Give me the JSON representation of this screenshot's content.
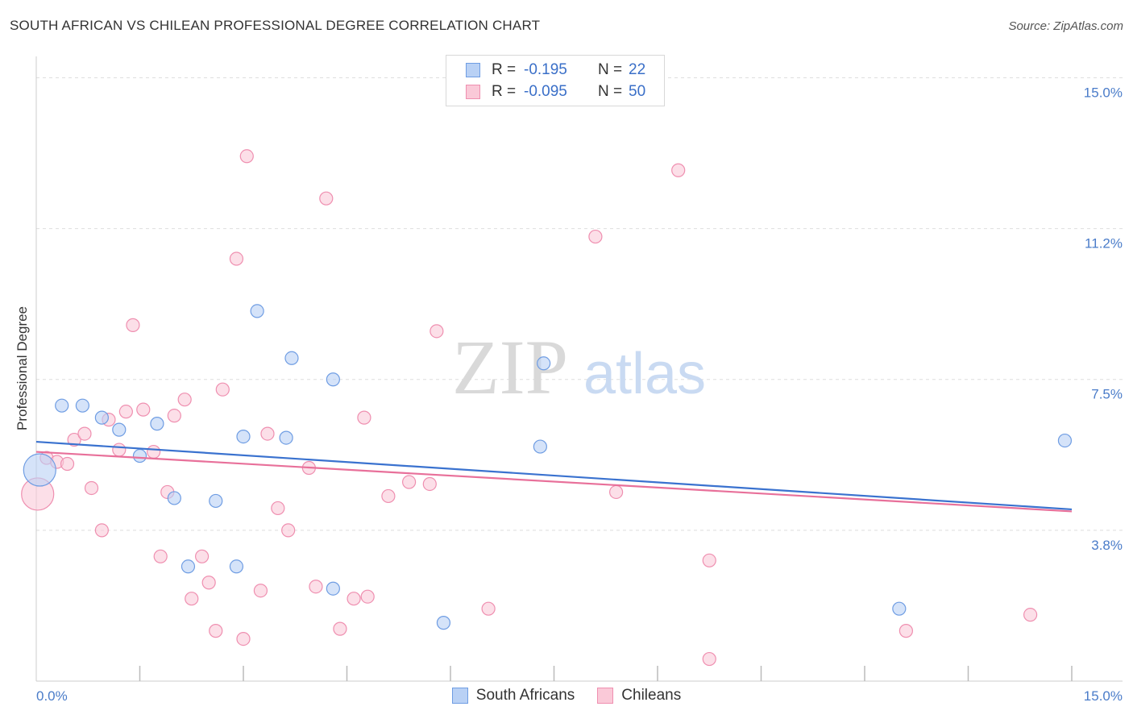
{
  "header": {
    "title": "SOUTH AFRICAN VS CHILEAN PROFESSIONAL DEGREE CORRELATION CHART",
    "source": "Source: ZipAtlas.com"
  },
  "legend": {
    "rows": [
      {
        "r_label": "R =",
        "r_value": "-0.195",
        "n_label": "N =",
        "n_value": "22",
        "color": "#6f9de3",
        "fill": "#b9d1f5"
      },
      {
        "r_label": "R =",
        "r_value": "-0.095",
        "n_label": "N =",
        "n_value": "50",
        "color": "#ef8fb0",
        "fill": "#fac9d8"
      }
    ]
  },
  "bottom_legend": {
    "items": [
      {
        "label": "South Africans",
        "color": "#6f9de3",
        "fill": "#b9d1f5"
      },
      {
        "label": "Chileans",
        "color": "#ef8fb0",
        "fill": "#fac9d8"
      }
    ]
  },
  "watermark": {
    "zip": "ZIP",
    "atlas": "atlas"
  },
  "chart_data": {
    "type": "scatter",
    "ylabel": "Professional Degree",
    "x_tick_labels": {
      "left": "0.0%",
      "right": "15.0%"
    },
    "y_ticks": [
      {
        "value": 15.0,
        "label": "15.0%"
      },
      {
        "value": 11.25,
        "label": "11.2%"
      },
      {
        "value": 7.5,
        "label": "7.5%"
      },
      {
        "value": 3.75,
        "label": "3.8%"
      }
    ],
    "xlim": [
      0,
      15
    ],
    "ylim": [
      0,
      15.35
    ],
    "grid": true,
    "series": [
      {
        "name": "South Africans",
        "stroke": "#6f9de3",
        "fill": "#b9d1f5",
        "line_color": "#3a72cf",
        "trend": {
          "x0": 0.0,
          "y0": 5.95,
          "x1": 15.0,
          "y1": 4.27
        },
        "points": [
          {
            "x": 0.05,
            "y": 5.25,
            "big": true
          },
          {
            "x": 0.37,
            "y": 6.85
          },
          {
            "x": 0.67,
            "y": 6.85
          },
          {
            "x": 0.95,
            "y": 6.55
          },
          {
            "x": 1.2,
            "y": 6.25
          },
          {
            "x": 1.5,
            "y": 5.6
          },
          {
            "x": 1.75,
            "y": 6.4
          },
          {
            "x": 2.0,
            "y": 4.55
          },
          {
            "x": 2.6,
            "y": 4.48
          },
          {
            "x": 2.2,
            "y": 2.85
          },
          {
            "x": 2.9,
            "y": 2.85
          },
          {
            "x": 3.0,
            "y": 6.08
          },
          {
            "x": 3.2,
            "y": 9.2
          },
          {
            "x": 3.62,
            "y": 6.05
          },
          {
            "x": 3.7,
            "y": 8.03
          },
          {
            "x": 4.3,
            "y": 7.5
          },
          {
            "x": 4.3,
            "y": 2.3
          },
          {
            "x": 5.9,
            "y": 1.45
          },
          {
            "x": 7.35,
            "y": 7.9
          },
          {
            "x": 7.3,
            "y": 5.83
          },
          {
            "x": 12.5,
            "y": 1.8
          },
          {
            "x": 14.9,
            "y": 5.98
          }
        ]
      },
      {
        "name": "Chileans",
        "stroke": "#ef8fb0",
        "fill": "#fac9d8",
        "line_color": "#e8709a",
        "trend": {
          "x0": 0.0,
          "y0": 5.7,
          "x1": 15.0,
          "y1": 4.22
        },
        "points": [
          {
            "x": 0.02,
            "y": 4.65,
            "big": true
          },
          {
            "x": 0.15,
            "y": 5.55
          },
          {
            "x": 0.3,
            "y": 5.45
          },
          {
            "x": 0.45,
            "y": 5.4
          },
          {
            "x": 0.55,
            "y": 6.0
          },
          {
            "x": 0.7,
            "y": 6.15
          },
          {
            "x": 0.8,
            "y": 4.8
          },
          {
            "x": 0.95,
            "y": 3.75
          },
          {
            "x": 1.05,
            "y": 6.5
          },
          {
            "x": 1.2,
            "y": 5.75
          },
          {
            "x": 1.3,
            "y": 6.7
          },
          {
            "x": 1.4,
            "y": 8.85
          },
          {
            "x": 1.55,
            "y": 6.75
          },
          {
            "x": 1.7,
            "y": 5.7
          },
          {
            "x": 1.8,
            "y": 3.1
          },
          {
            "x": 1.9,
            "y": 4.7
          },
          {
            "x": 2.0,
            "y": 6.6
          },
          {
            "x": 2.15,
            "y": 7.0
          },
          {
            "x": 2.25,
            "y": 2.05
          },
          {
            "x": 2.4,
            "y": 3.1
          },
          {
            "x": 2.5,
            "y": 2.45
          },
          {
            "x": 2.6,
            "y": 1.25
          },
          {
            "x": 2.7,
            "y": 7.25
          },
          {
            "x": 2.9,
            "y": 10.5
          },
          {
            "x": 3.0,
            "y": 1.05
          },
          {
            "x": 3.05,
            "y": 13.05
          },
          {
            "x": 3.25,
            "y": 2.25
          },
          {
            "x": 3.35,
            "y": 6.15
          },
          {
            "x": 3.5,
            "y": 4.3
          },
          {
            "x": 3.65,
            "y": 3.75
          },
          {
            "x": 3.95,
            "y": 5.3
          },
          {
            "x": 4.05,
            "y": 2.35
          },
          {
            "x": 4.2,
            "y": 12.0
          },
          {
            "x": 4.4,
            "y": 1.3
          },
          {
            "x": 4.6,
            "y": 2.05
          },
          {
            "x": 4.75,
            "y": 6.55
          },
          {
            "x": 4.8,
            "y": 2.1
          },
          {
            "x": 5.1,
            "y": 4.6
          },
          {
            "x": 5.4,
            "y": 4.95
          },
          {
            "x": 5.7,
            "y": 4.9
          },
          {
            "x": 5.8,
            "y": 8.7
          },
          {
            "x": 6.55,
            "y": 1.8
          },
          {
            "x": 8.1,
            "y": 11.05
          },
          {
            "x": 8.4,
            "y": 4.7
          },
          {
            "x": 9.3,
            "y": 12.7
          },
          {
            "x": 9.75,
            "y": 3.0
          },
          {
            "x": 9.75,
            "y": 0.55
          },
          {
            "x": 12.6,
            "y": 1.25
          },
          {
            "x": 14.4,
            "y": 1.65
          },
          {
            "x": 6.8,
            "y": 14.85
          }
        ]
      }
    ]
  }
}
